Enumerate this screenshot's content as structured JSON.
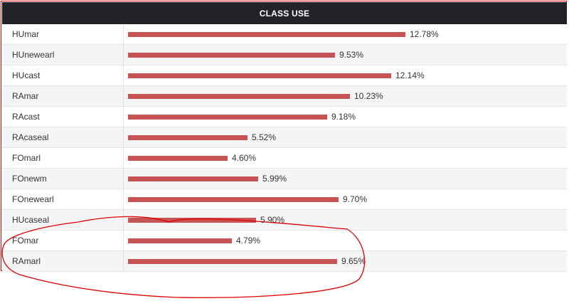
{
  "header": {
    "title": "CLASS USE"
  },
  "colors": {
    "bar": "#c75454",
    "header_bg": "#222328",
    "annotation": "#e00000"
  },
  "rows": [
    {
      "label": "HUmar",
      "value": 12.78,
      "percent_text": "12.78%"
    },
    {
      "label": "HUnewearl",
      "value": 9.53,
      "percent_text": "9.53%"
    },
    {
      "label": "HUcast",
      "value": 12.14,
      "percent_text": "12.14%"
    },
    {
      "label": "RAmar",
      "value": 10.23,
      "percent_text": "10.23%"
    },
    {
      "label": "RAcast",
      "value": 9.18,
      "percent_text": "9.18%"
    },
    {
      "label": "RAcaseal",
      "value": 5.52,
      "percent_text": "5.52%"
    },
    {
      "label": "FOmarl",
      "value": 4.6,
      "percent_text": "4.60%"
    },
    {
      "label": "FOnewm",
      "value": 5.99,
      "percent_text": "5.99%"
    },
    {
      "label": "FOnewearl",
      "value": 9.7,
      "percent_text": "9.70%"
    },
    {
      "label": "HUcaseal",
      "value": 5.9,
      "percent_text": "5.90%"
    },
    {
      "label": "FOmar",
      "value": 4.79,
      "percent_text": "4.79%"
    },
    {
      "label": "RAmarl",
      "value": 9.65,
      "percent_text": "9.65%"
    }
  ]
}
